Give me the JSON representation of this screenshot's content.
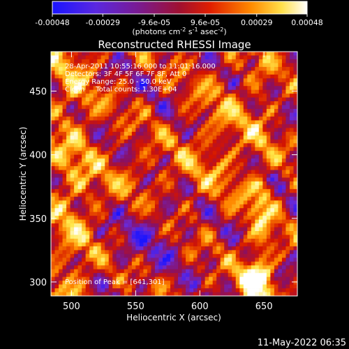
{
  "colorbar": {
    "tick_labels": [
      "-0.00048",
      "-0.00029",
      "-9.6e-05",
      "9.6e-05",
      "0.00029",
      "0.00048"
    ],
    "tick_values": [
      -0.00048,
      -0.00029,
      -9.6e-05,
      9.6e-05,
      0.00029,
      0.00048
    ],
    "range": [
      -0.00048,
      0.00048
    ],
    "unit_main": "(photons cm",
    "unit_sup1": "-2",
    "unit_mid1": " s",
    "unit_sup2": "-1",
    "unit_mid2": " asec",
    "unit_sup3": "-2",
    "unit_end": ")",
    "colors": [
      "#1a14ff",
      "#6a2ad8",
      "#8a1060",
      "#d41400",
      "#ff8800",
      "#ffe84a",
      "#ffffff"
    ]
  },
  "chart_data": {
    "type": "heatmap",
    "title": "Reconstructed RHESSI Image",
    "xlabel": "Heliocentric X (arcsec)",
    "ylabel": "Heliocentric Y (arcsec)",
    "xlim": [
      484,
      676
    ],
    "ylim": [
      289,
      481
    ],
    "x_ticks": [
      500,
      550,
      600,
      650
    ],
    "y_ticks": [
      300,
      350,
      400,
      450
    ],
    "x_tick_labels": [
      "500",
      "550",
      "600",
      "650"
    ],
    "y_tick_labels": [
      "300",
      "350",
      "400",
      "450"
    ],
    "peak": [
      641,
      301
    ],
    "grid_size": [
      64,
      64
    ]
  },
  "info": {
    "line1": "28-Apr-2011 10:55:16.000 to 11:01:16.000",
    "line2": "Detectors: 3F 4F 5F 6F 7F 8F, Att 0",
    "line3": "Energy Range: 25.0 - 50.0 keV",
    "line4": "Clean     Total counts: 1.30E+04",
    "peak_label": "Position of Peak = [641,301]"
  },
  "footer": {
    "date": "11-May-2022 06:35"
  }
}
